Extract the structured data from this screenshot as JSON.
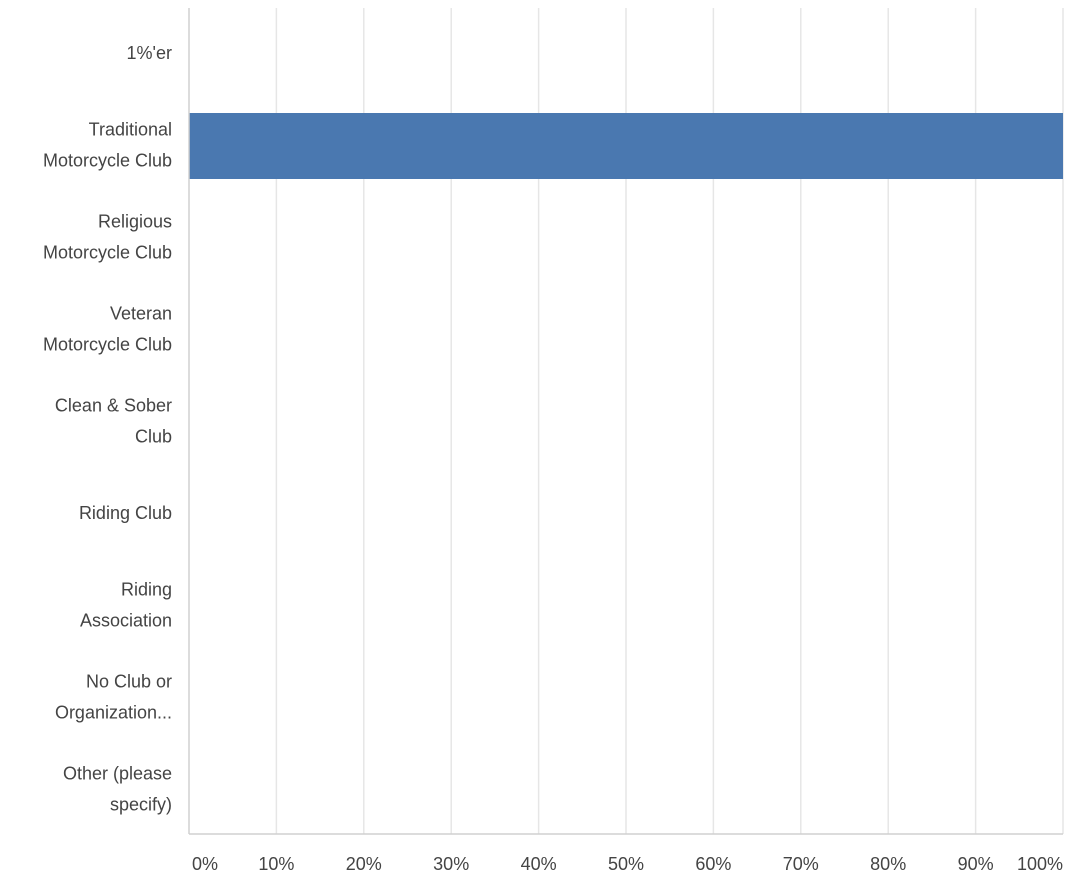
{
  "chart_data": {
    "type": "bar",
    "orientation": "horizontal",
    "categories": [
      "1%'er",
      "Traditional Motorcycle Club",
      "Religious Motorcycle Club",
      "Veteran Motorcycle Club",
      "Clean & Sober Club",
      "Riding Club",
      "Riding Association",
      "No Club or Organization...",
      "Other (please specify)"
    ],
    "category_label_lines": [
      [
        "1%'er"
      ],
      [
        "Traditional",
        "Motorcycle Club"
      ],
      [
        "Religious",
        "Motorcycle Club"
      ],
      [
        "Veteran",
        "Motorcycle Club"
      ],
      [
        "Clean & Sober",
        "Club"
      ],
      [
        "Riding Club"
      ],
      [
        "Riding",
        "Association"
      ],
      [
        "No Club or",
        "Organization..."
      ],
      [
        "Other (please",
        "specify)"
      ]
    ],
    "values": [
      0,
      100,
      0,
      0,
      0,
      0,
      0,
      0,
      0
    ],
    "xlim": [
      0,
      100
    ],
    "x_ticks": [
      0,
      10,
      20,
      30,
      40,
      50,
      60,
      70,
      80,
      90,
      100
    ],
    "x_tick_labels": [
      "0%",
      "10%",
      "20%",
      "30%",
      "40%",
      "50%",
      "60%",
      "70%",
      "80%",
      "90%",
      "100%"
    ],
    "grid": true,
    "title": "",
    "xlabel": "",
    "ylabel": "",
    "colors": {
      "bar": "#4a78b0",
      "grid": "#e6e6e6",
      "axis": "#d0d0d0",
      "label": "#444444"
    }
  }
}
